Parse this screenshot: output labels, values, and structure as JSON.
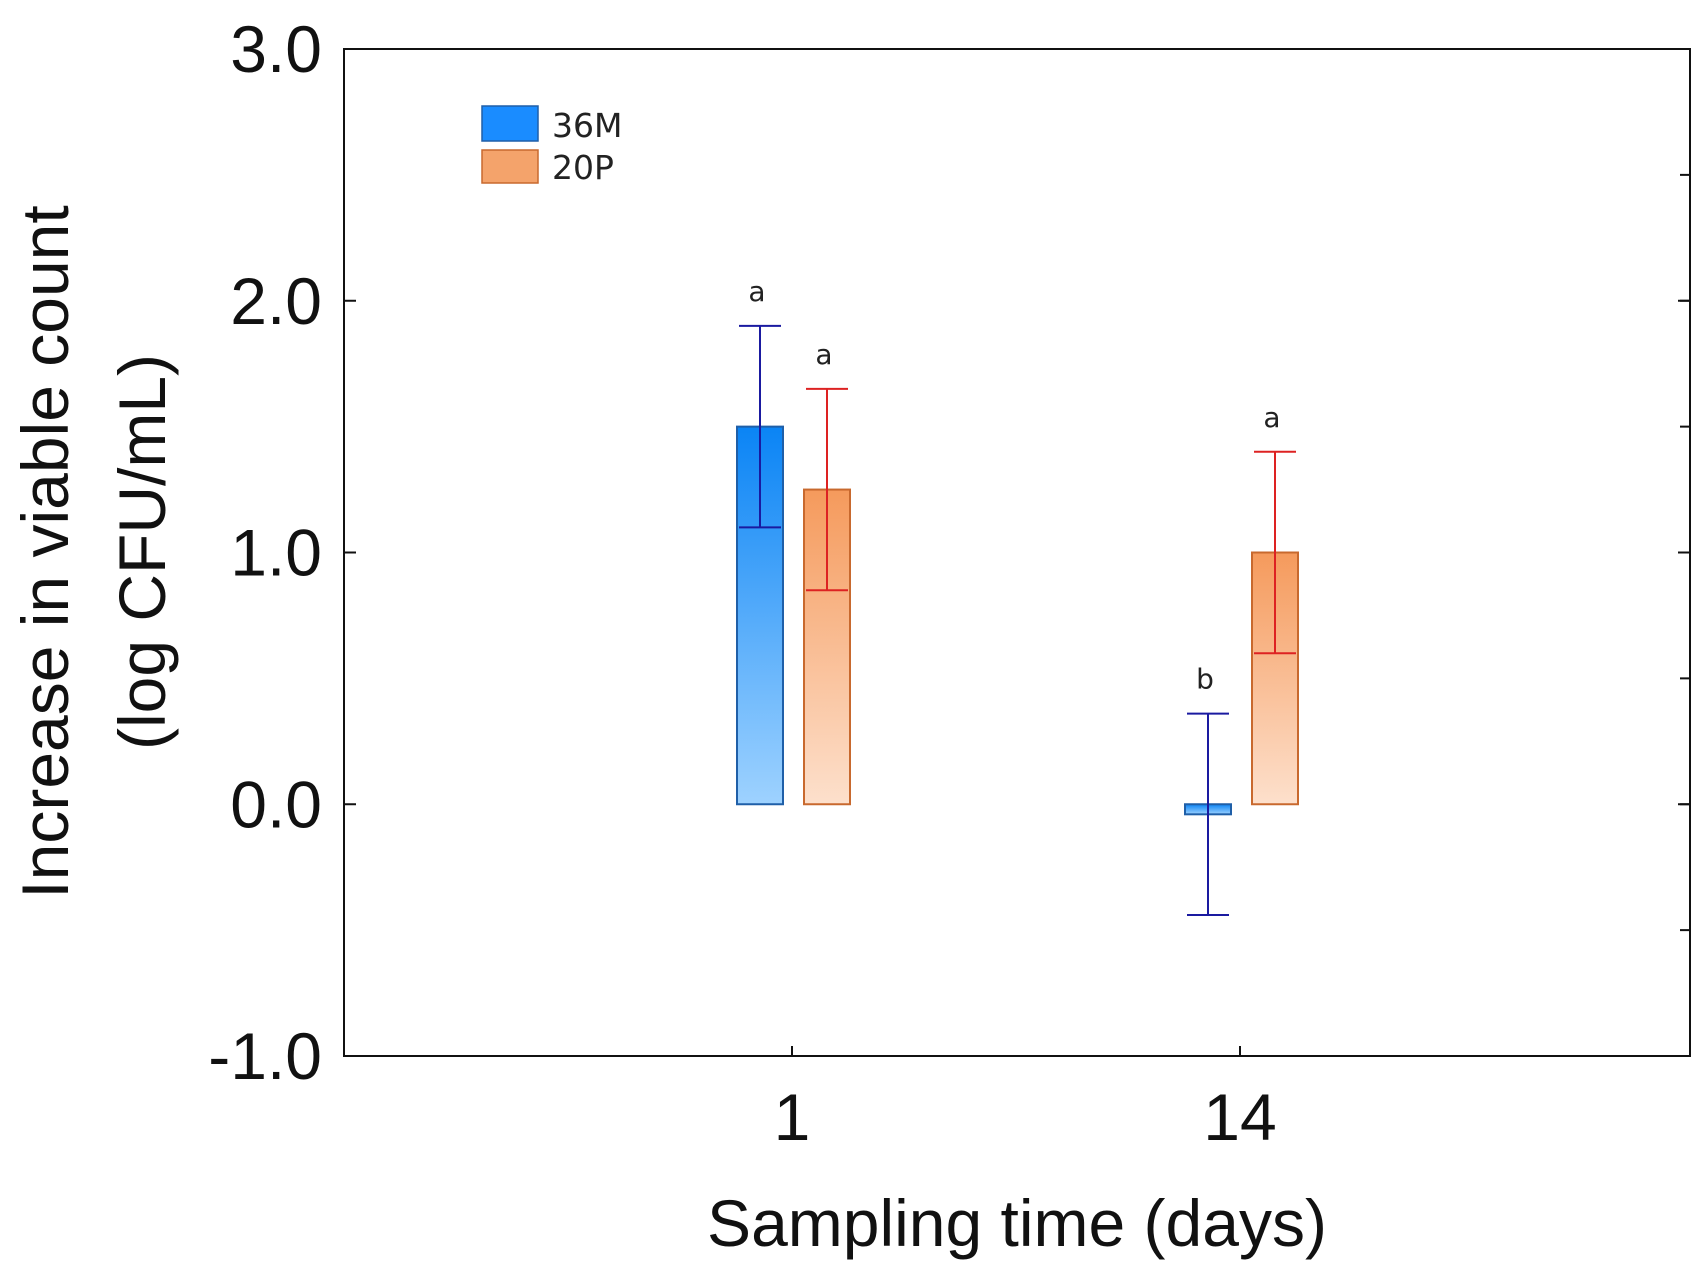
{
  "chart_data": {
    "type": "bar",
    "title": "",
    "xlabel": "Sampling time (days)",
    "ylabel_line1": "Increase in viable count",
    "ylabel_line2": "(log CFU/mL)",
    "categories": [
      "1",
      "14"
    ],
    "ylim": [
      -1.0,
      3.0
    ],
    "yticks": [
      -1.0,
      0.0,
      1.0,
      2.0,
      3.0
    ],
    "ytick_labels": [
      "-1.0",
      "0.0",
      "1.0",
      "2.0",
      "3.0"
    ],
    "grid": false,
    "legend_position": "top-left",
    "series": [
      {
        "name": "36M",
        "color": "#1a8cff",
        "edge_color": "#1f5fa8",
        "error_color": "#1a1aa0",
        "values": [
          1.5,
          -0.04
        ],
        "error": [
          0.4,
          0.4
        ],
        "labels": [
          "a",
          "b"
        ]
      },
      {
        "name": "20P",
        "color": "#f4a36b",
        "edge_color": "#c8692e",
        "error_color": "#dd2222",
        "values": [
          1.25,
          1.0
        ],
        "error": [
          0.4,
          0.4
        ],
        "labels": [
          "a",
          "a"
        ]
      }
    ]
  }
}
